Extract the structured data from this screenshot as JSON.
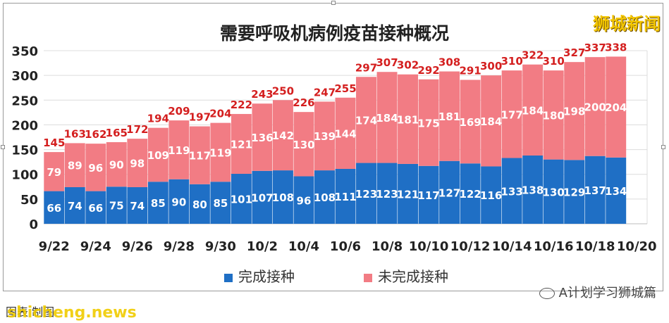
{
  "title": "需要呼吸机病例疫苗接种概况",
  "brand": "狮城新闻",
  "footer_note": "图表  制图",
  "watermark_left": "shicheng.news",
  "watermark_right": "A计划学习狮城篇",
  "colors": {
    "vaccinated": "#1f6fc5",
    "unvaccinated": "#f27c84",
    "total_label": "#d41f1f",
    "grid": "#dcdcdc"
  },
  "chart_data": {
    "type": "bar",
    "stacked": true,
    "title": "需要呼吸机病例疫苗接种概况",
    "xlabel": "",
    "ylabel": "",
    "ylim": [
      0,
      350
    ],
    "yticks": [
      0,
      50,
      100,
      150,
      200,
      250,
      300,
      350
    ],
    "grid": true,
    "legend_position": "bottom",
    "categories": [
      "9/22",
      "9/23",
      "9/24",
      "9/25",
      "9/26",
      "9/27",
      "9/28",
      "9/29",
      "9/30",
      "10/1",
      "10/2",
      "10/3",
      "10/4",
      "10/5",
      "10/6",
      "10/7",
      "10/8",
      "10/9",
      "10/10",
      "10/11",
      "10/12",
      "10/13",
      "10/14",
      "10/15",
      "10/16",
      "10/17",
      "10/18",
      "10/19",
      "10/20"
    ],
    "tick_labels": [
      "9/22",
      "9/24",
      "9/26",
      "9/28",
      "9/30",
      "10/2",
      "10/4",
      "10/6",
      "10/8",
      "10/10",
      "10/12",
      "10/14",
      "10/16",
      "10/18",
      "10/20"
    ],
    "series": [
      {
        "name": "完成接种",
        "values": [
          66,
          74,
          66,
          75,
          74,
          85,
          90,
          80,
          85,
          101,
          107,
          108,
          96,
          108,
          111,
          123,
          123,
          121,
          117,
          127,
          122,
          116,
          133,
          138,
          130,
          129,
          137,
          134,
          null
        ]
      },
      {
        "name": "未完成接种",
        "values": [
          79,
          89,
          96,
          90,
          98,
          109,
          119,
          117,
          119,
          121,
          136,
          142,
          130,
          139,
          144,
          174,
          184,
          181,
          175,
          181,
          169,
          184,
          177,
          184,
          180,
          198,
          200,
          204,
          null
        ]
      }
    ],
    "totals": [
      145,
      163,
      162,
      165,
      172,
      194,
      209,
      197,
      204,
      222,
      243,
      250,
      226,
      247,
      255,
      297,
      307,
      302,
      292,
      308,
      291,
      300,
      310,
      322,
      310,
      327,
      337,
      338,
      null
    ]
  }
}
